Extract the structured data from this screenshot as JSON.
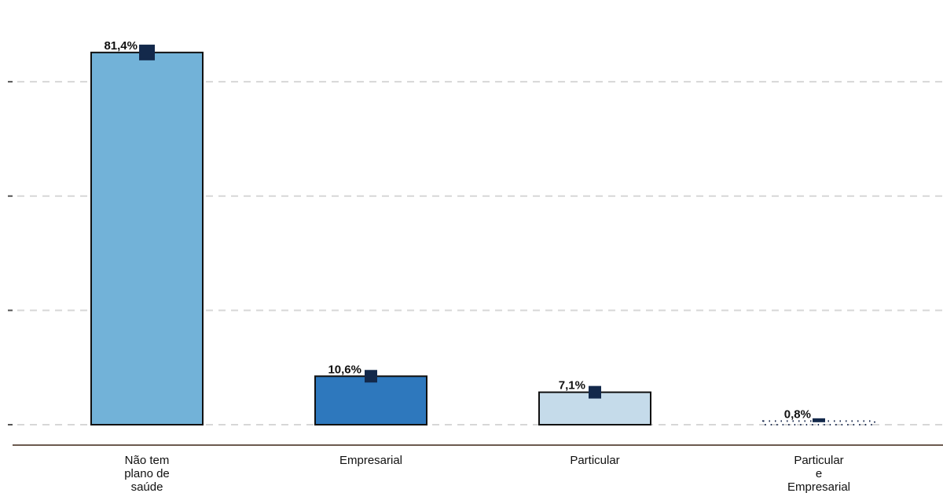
{
  "chart_data": {
    "type": "bar",
    "title": "",
    "xlabel": "",
    "ylabel": "",
    "ylim": [
      0,
      90
    ],
    "grid": true,
    "gridlines": [
      0,
      25,
      50,
      75
    ],
    "categories": [
      "Não tem\nplano de\nsaúde",
      "Empresarial",
      "Particular",
      "Particular\ne\nEmpresarial"
    ],
    "values": [
      81.4,
      10.6,
      7.1,
      0.8
    ],
    "labels": [
      "81,4%",
      "10,6%",
      "7,1%",
      "0,8%"
    ],
    "colors": [
      "#72b2d8",
      "#2e78bd",
      "#c5dbea",
      "#ffffff"
    ],
    "marker_color": "#13294b"
  }
}
